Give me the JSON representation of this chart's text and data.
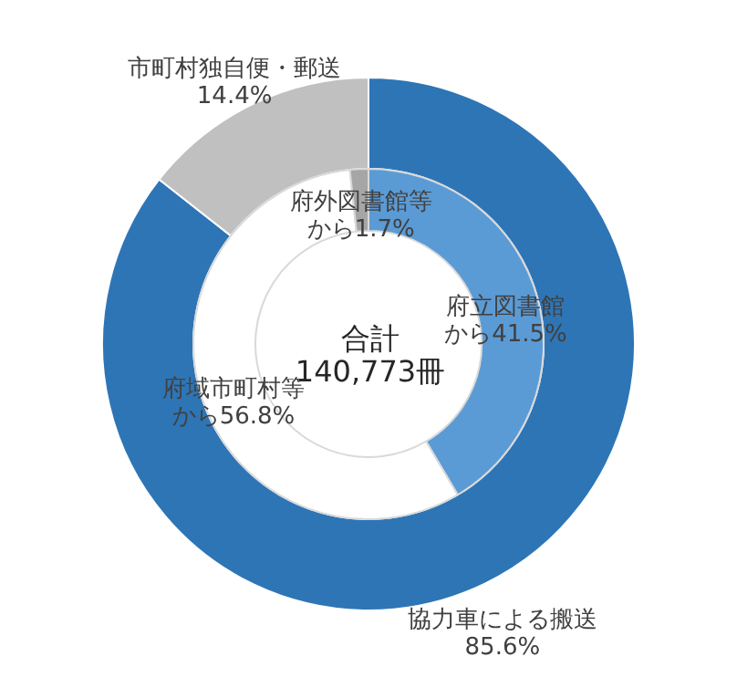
{
  "chart_data": [
    {
      "type": "donut",
      "categories": [
        "協力車による搬送",
        "市町村独自便・郵送"
      ],
      "values": [
        85.6,
        14.4
      ],
      "colors": [
        "#2e75b6",
        "#c0c0c0"
      ],
      "value_labels": [
        "85.6%",
        "14.4%"
      ]
    },
    {
      "type": "donut",
      "categories": [
        "府立図書館",
        "府域市町村等",
        "府外図書館等"
      ],
      "values": [
        41.5,
        56.8,
        1.7
      ],
      "colors": [
        "#5b9bd5",
        "#ffffff",
        "#a6a6a6"
      ],
      "value_labels": [
        "から41.5%",
        "から56.8%",
        "から1.7%"
      ],
      "annotations": [
        "合計",
        "140,773冊"
      ]
    }
  ]
}
